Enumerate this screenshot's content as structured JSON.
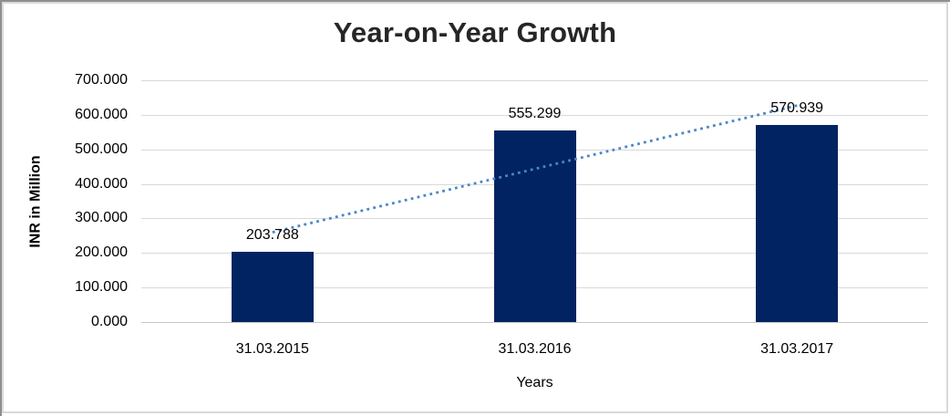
{
  "chart_data": {
    "type": "bar",
    "title": "Year-on-Year Growth",
    "categories": [
      "31.03.2015",
      "31.03.2016",
      "31.03.2017"
    ],
    "values": [
      203.788,
      555.299,
      570.939
    ],
    "data_labels": [
      "203.788",
      "555.299",
      "570.939"
    ],
    "xlabel": "Years",
    "ylabel": "INR in Million",
    "ylim": [
      0,
      700
    ],
    "ytick_labels": [
      "700.000",
      "600.000",
      "500.000",
      "400.000",
      "300.000",
      "200.000",
      "100.000",
      "0.000"
    ],
    "grid": true,
    "legend": "none",
    "trendline": {
      "type": "linear",
      "style": "dotted",
      "color": "#4a86c8"
    },
    "colors": {
      "bar": "#022361",
      "gridline": "#d9d9d9",
      "axis_line": "#c6c6c6",
      "trend": "#4a86c8",
      "title_text": "#262626",
      "axis_text": "#000000"
    }
  }
}
